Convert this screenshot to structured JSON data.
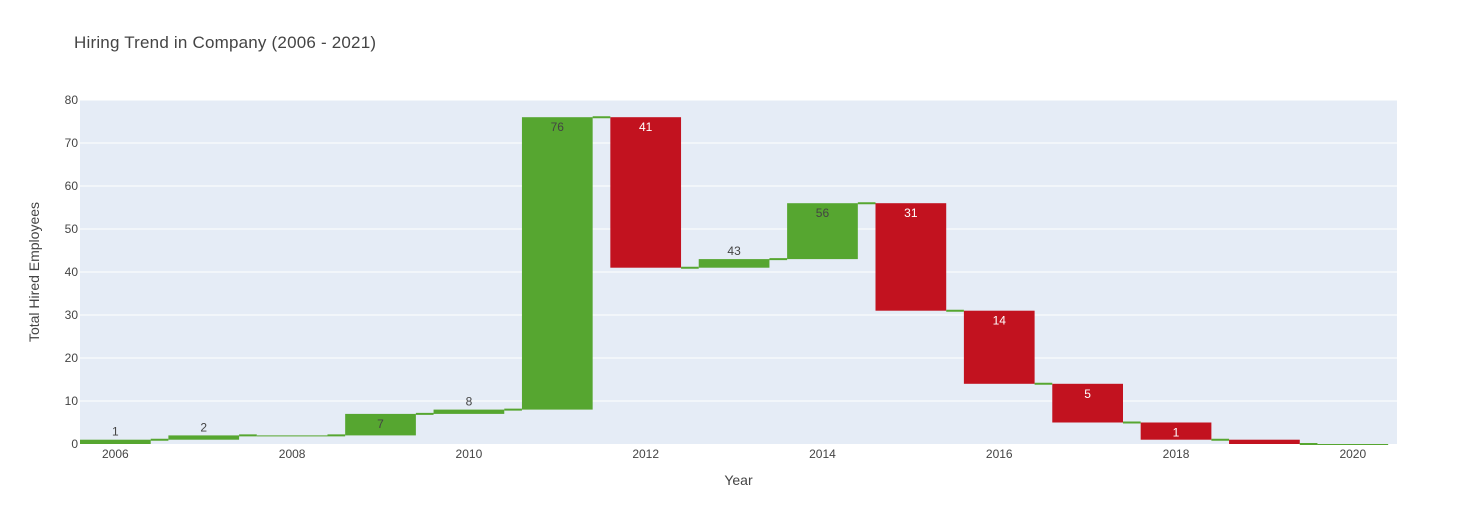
{
  "chart_data": {
    "type": "waterfall",
    "title": "Hiring Trend in Company (2006 - 2021)",
    "xlabel": "Year",
    "ylabel": "Total Hired Employees",
    "x_ticks": [
      "2006",
      "2008",
      "2010",
      "2012",
      "2014",
      "2016",
      "2018",
      "2020"
    ],
    "y_ticks": [
      "0",
      "10",
      "20",
      "30",
      "40",
      "50",
      "60",
      "70",
      "80"
    ],
    "ylim": [
      0,
      80
    ],
    "xlim": [
      2005.6,
      2020.5
    ],
    "x": [
      2006,
      2007,
      2008,
      2009,
      2010,
      2011,
      2012,
      2013,
      2014,
      2015,
      2016,
      2017,
      2018,
      2019,
      2020
    ],
    "deltas": [
      1,
      1,
      0,
      5,
      1,
      68,
      -35,
      2,
      13,
      -25,
      -17,
      -9,
      -4,
      -1,
      0
    ],
    "text_labels": [
      "1",
      "2",
      "",
      "7",
      "8",
      "76",
      "41",
      "43",
      "56",
      "31",
      "14",
      "5",
      "1",
      "",
      ""
    ],
    "colors": {
      "increasing": "#56a630",
      "decreasing": "#c2121f",
      "connector": "#56a630",
      "plot_bg": "#e5ecf6",
      "grid": "#ffffff"
    }
  }
}
